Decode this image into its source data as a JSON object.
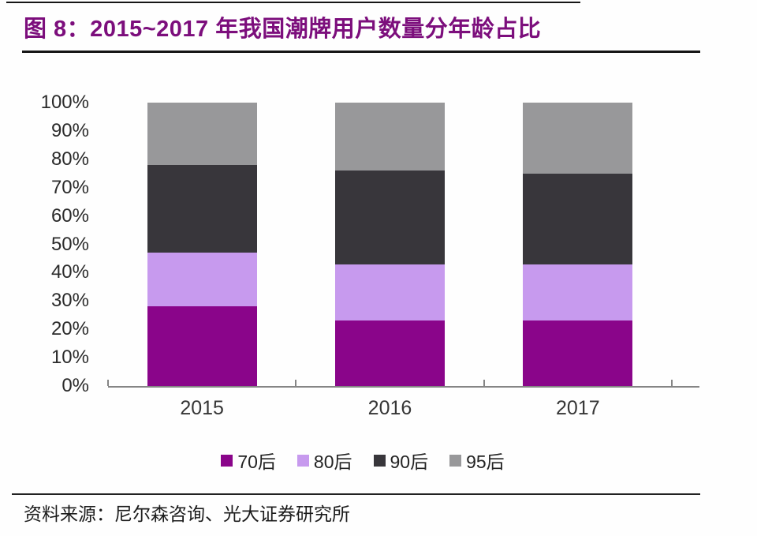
{
  "header": {
    "title": "图 8：2015~2017 年我国潮牌用户数量分年龄占比"
  },
  "footer": {
    "source": "资料来源：尼尔森咨询、光大证券研究所"
  },
  "colors": {
    "title": "#7c0e7c",
    "axis": "#858585",
    "tick_text": "#2b2b2b"
  },
  "chart_data": {
    "type": "bar",
    "stacked": true,
    "percent_stacked": true,
    "title": "2015~2017 年我国潮牌用户数量分年龄占比",
    "categories": [
      "2015",
      "2016",
      "2017"
    ],
    "series": [
      {
        "name": "70后",
        "color": "#8a058a",
        "values": [
          28,
          23,
          23
        ]
      },
      {
        "name": "80后",
        "color": "#c79aee",
        "values": [
          19,
          20,
          20
        ]
      },
      {
        "name": "90后",
        "color": "#38363b",
        "values": [
          31,
          33,
          32
        ]
      },
      {
        "name": "95后",
        "color": "#98989a",
        "values": [
          22,
          24,
          25
        ]
      }
    ],
    "xlabel": "",
    "ylabel": "",
    "ylim": [
      0,
      100
    ],
    "y_ticks": [
      0,
      10,
      20,
      30,
      40,
      50,
      60,
      70,
      80,
      90,
      100
    ],
    "y_tick_suffix": "%",
    "grid": false,
    "legend_position": "bottom"
  }
}
